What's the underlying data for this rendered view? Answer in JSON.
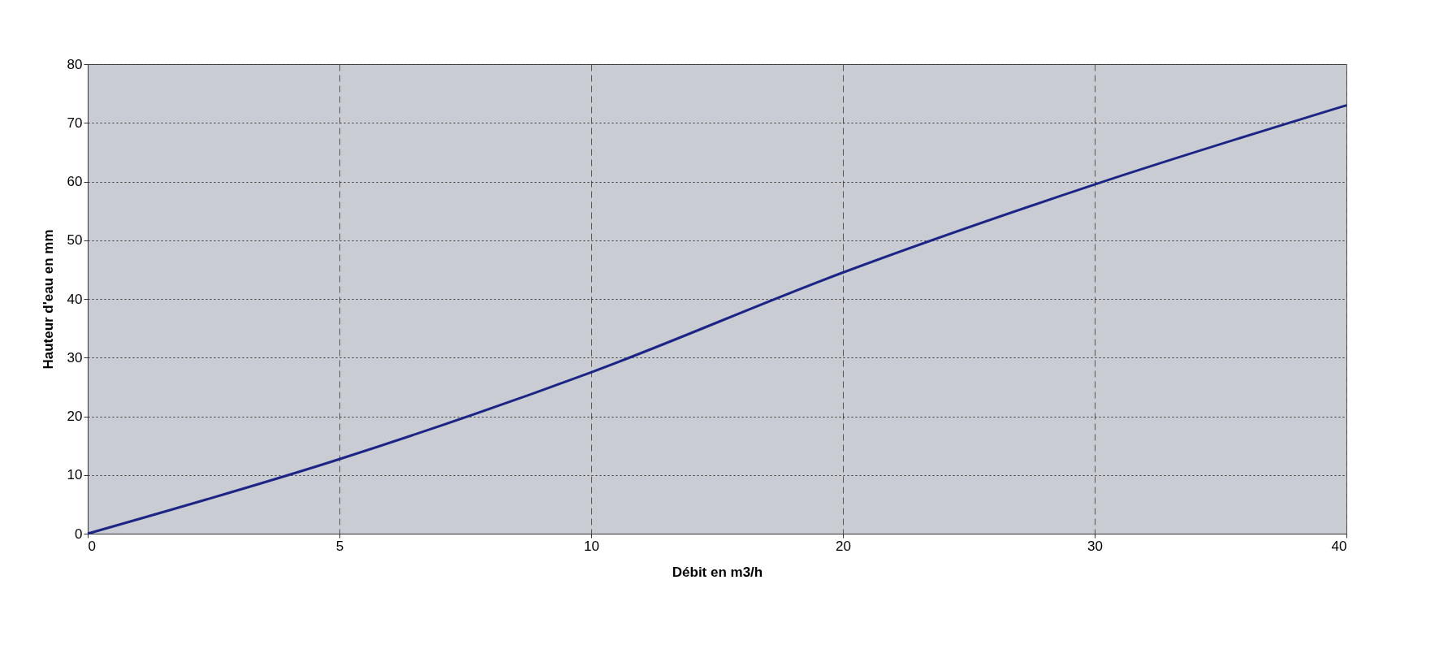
{
  "chart_data": {
    "type": "line",
    "xlabel": "Débit en m3/h",
    "ylabel": "Hauteur d'eau en mm",
    "categories": [
      "0",
      "5",
      "10",
      "20",
      "30",
      "40"
    ],
    "series": [
      {
        "color": "#1c2585",
        "values": [
          0,
          12.7,
          27.5,
          44.5,
          59.5,
          73
        ]
      }
    ],
    "ylim": [
      0,
      80
    ],
    "yticks": [
      0,
      10,
      20,
      30,
      40,
      50,
      60,
      70,
      80
    ],
    "grid": true,
    "marker": "none",
    "line_style": "solid"
  }
}
